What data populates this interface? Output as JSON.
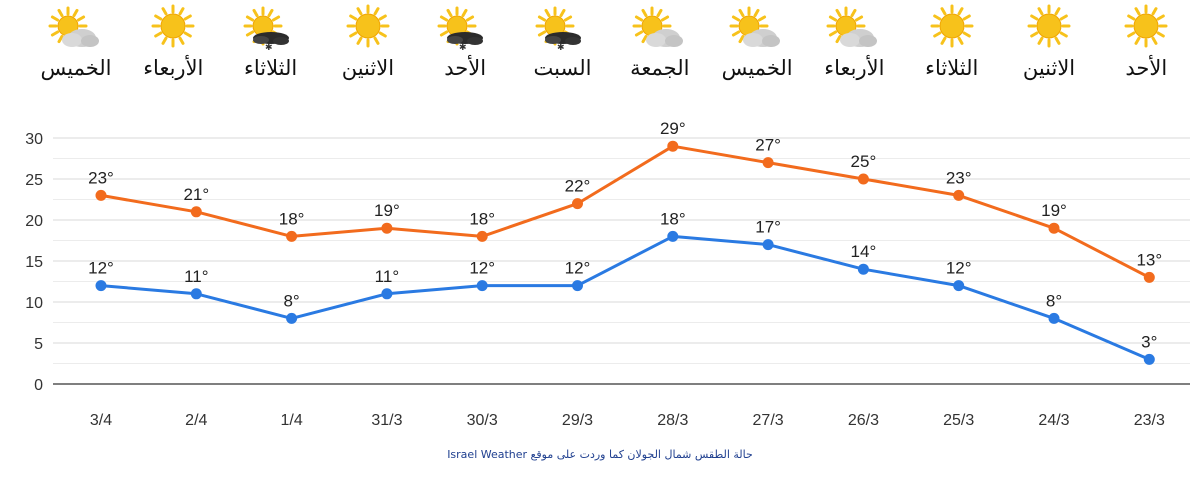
{
  "days": [
    {
      "label": "الخميس",
      "icon": "sun-cloud-icon"
    },
    {
      "label": "الأربعاء",
      "icon": "sun-icon"
    },
    {
      "label": "الثلاثاء",
      "icon": "sun-storm-icon"
    },
    {
      "label": "الاثنين",
      "icon": "sun-icon"
    },
    {
      "label": "الأحد",
      "icon": "sun-storm-icon"
    },
    {
      "label": "السبت",
      "icon": "sun-storm-icon"
    },
    {
      "label": "الجمعة",
      "icon": "sun-cloud-icon"
    },
    {
      "label": "الخميس",
      "icon": "sun-cloud-icon"
    },
    {
      "label": "الأربعاء",
      "icon": "sun-cloud-icon"
    },
    {
      "label": "الثلاثاء",
      "icon": "sun-icon"
    },
    {
      "label": "الاثنين",
      "icon": "sun-icon"
    },
    {
      "label": "الأحد",
      "icon": "sun-icon"
    }
  ],
  "chart_data": {
    "type": "line",
    "categories": [
      "3/4",
      "2/4",
      "1/4",
      "31/3",
      "30/3",
      "29/3",
      "28/3",
      "27/3",
      "26/3",
      "25/3",
      "24/3",
      "23/3"
    ],
    "series": [
      {
        "values": [
          23,
          21,
          18,
          19,
          18,
          22,
          29,
          27,
          25,
          23,
          19,
          13
        ],
        "labels": [
          "23°",
          "21°",
          "18°",
          "19°",
          "18°",
          "22°",
          "29°",
          "27°",
          "25°",
          "23°",
          "19°",
          "13°"
        ],
        "color": "#f26b1d"
      },
      {
        "values": [
          12,
          11,
          8,
          11,
          12,
          12,
          18,
          17,
          14,
          12,
          8,
          3
        ],
        "labels": [
          "12°",
          "11°",
          "8°",
          "11°",
          "12°",
          "12°",
          "18°",
          "17°",
          "14°",
          "12°",
          "8°",
          "3°"
        ],
        "color": "#2a7ae2"
      }
    ],
    "y_ticks": [
      "0",
      "5",
      "10",
      "15",
      "20",
      "25",
      "30"
    ],
    "ylim": [
      0,
      30
    ],
    "grid": true,
    "legend": "none"
  },
  "caption": "حالة الطقس شمال الجولان كما وردت على موقع Israel Weather",
  "colors": {
    "sun": "#f7c21b",
    "cloud": "#cfcfcf",
    "grid": "#d9d9d9",
    "axis": "#555555"
  }
}
